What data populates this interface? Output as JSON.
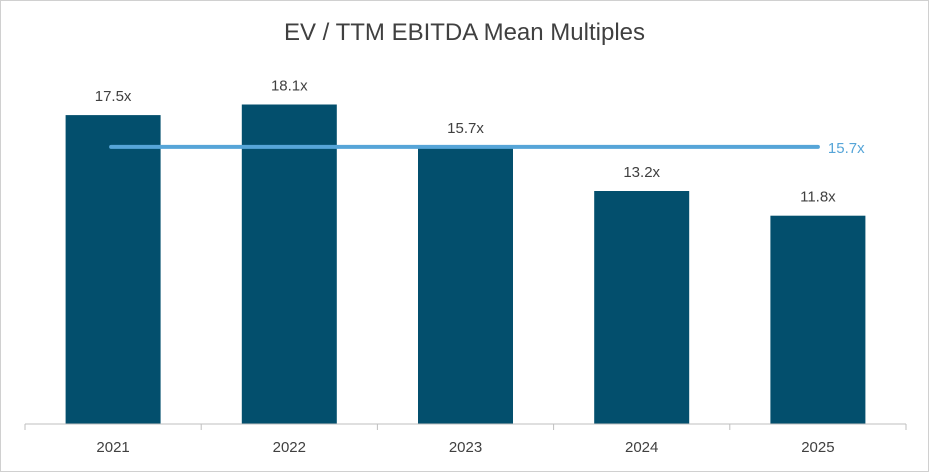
{
  "chart_data": {
    "type": "bar",
    "title": "EV / TTM EBITDA Mean Multiples",
    "categories": [
      "2021",
      "2022",
      "2023",
      "2024",
      "2025"
    ],
    "values": [
      17.5,
      18.1,
      15.7,
      13.2,
      11.8
    ],
    "value_labels": [
      "17.5x",
      "18.1x",
      "15.7x",
      "13.2x",
      "11.8x"
    ],
    "reference_line": {
      "value": 15.7,
      "label": "15.7x",
      "color": "#56a5d8"
    },
    "bar_color": "#034f6d",
    "label_color": "#404040",
    "ylim": [
      0,
      20
    ],
    "grid": false,
    "legend": "none",
    "xlabel": "",
    "ylabel": ""
  }
}
